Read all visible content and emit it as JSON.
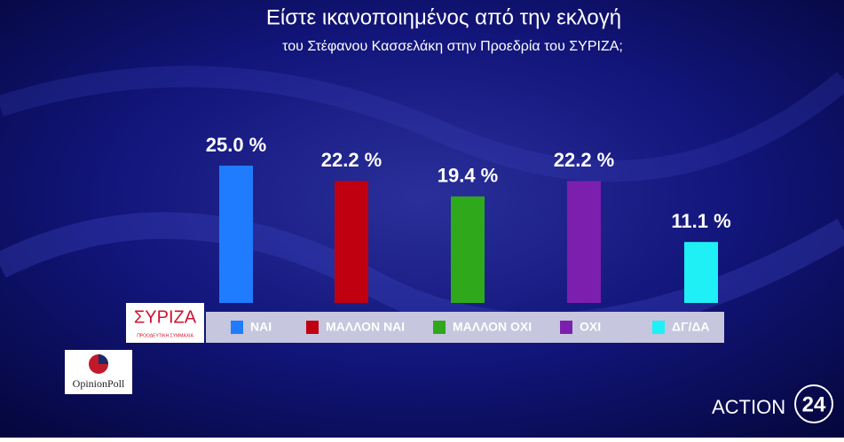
{
  "chart_data": {
    "type": "bar",
    "title": "Είστε ικανοποιημένος από την εκλογή",
    "subtitle": "του Στέφανου Κασσελάκη στην Προεδρία  του ΣΥΡΙΖΑ;",
    "categories": [
      "ΝΑΙ",
      "ΜΑΛΛΟΝ ΝΑΙ",
      "ΜΑΛΛΟΝ ΟΧΙ",
      "ΟΧΙ",
      "ΔΓ/ΔΑ"
    ],
    "values": [
      25.0,
      22.2,
      19.4,
      22.2,
      11.1
    ],
    "value_labels": [
      "25.0 %",
      "22.2 %",
      "19.4 %",
      "22.2 %",
      "11.1 %"
    ],
    "colors": [
      "#1f7cff",
      "#c00010",
      "#2fa81c",
      "#7c1fae",
      "#1ef0f5"
    ]
  },
  "branding": {
    "party_logo": "ΣΥΡΙΖΑ",
    "party_tagline": "ΠΡΟΟΔΕΥΤΙΚΗ ΣΥΜΜΑΧΙΑ",
    "pollster": "OpinionPoll",
    "channel": "ACTION",
    "channel_number": "24"
  }
}
